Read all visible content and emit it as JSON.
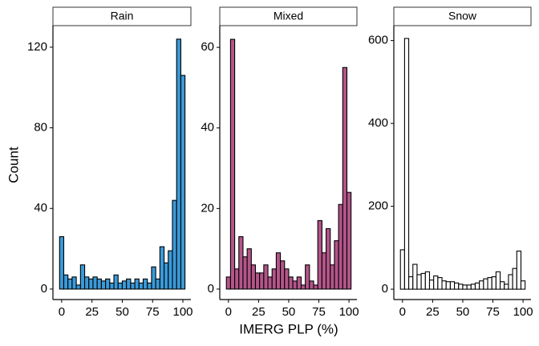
{
  "chart_data": [
    {
      "type": "histogram",
      "title": "Rain",
      "y_label": "Count",
      "bins": [
        -1.72,
        1.72,
        5.17,
        8.62,
        12.07,
        15.52,
        18.97,
        22.41,
        25.86,
        29.31,
        32.76,
        36.21,
        39.66,
        43.1,
        46.55,
        50,
        53.45,
        56.9,
        60.34,
        63.79,
        67.24,
        70.69,
        74.14,
        77.59,
        81.03,
        84.48,
        87.93,
        91.38,
        94.83,
        98.28,
        101.72
      ],
      "counts": [
        26,
        7,
        5,
        6,
        2,
        12,
        6,
        5,
        6,
        5,
        4,
        5,
        3,
        7,
        3,
        4,
        5,
        3,
        5,
        3,
        5,
        3,
        11,
        5,
        21,
        13,
        19,
        44,
        124,
        106
      ],
      "color": "#3a9ad9",
      "xlim": [
        -7.2,
        106.6
      ],
      "xticks": [
        0,
        25,
        50,
        75,
        100
      ],
      "ylim": [
        -5.2,
        130.7
      ],
      "yticks": [
        0,
        40,
        80,
        120
      ]
    },
    {
      "type": "histogram",
      "title": "Mixed",
      "x_label": "IMERG PLP (%)",
      "bins": [
        -1.72,
        1.72,
        5.17,
        8.62,
        12.07,
        15.52,
        18.97,
        22.41,
        25.86,
        29.31,
        32.76,
        36.21,
        39.66,
        43.1,
        46.55,
        50,
        53.45,
        56.9,
        60.34,
        63.79,
        67.24,
        70.69,
        74.14,
        77.59,
        81.03,
        84.48,
        87.93,
        91.38,
        94.83,
        98.28,
        101.72
      ],
      "counts": [
        3,
        62,
        5,
        13,
        8,
        10,
        6,
        4,
        4,
        6,
        3,
        5,
        9,
        7,
        5,
        3,
        2,
        3,
        1,
        6,
        2,
        1,
        17,
        9,
        15,
        6,
        12,
        21,
        55,
        24
      ],
      "color": "#b4558a",
      "xlim": [
        -7.2,
        106.6
      ],
      "xticks": [
        0,
        25,
        50,
        75,
        100
      ],
      "ylim": [
        -2.6,
        65.4
      ],
      "yticks": [
        0,
        20,
        40,
        60
      ]
    },
    {
      "type": "histogram",
      "title": "Snow",
      "bins": [
        -1.72,
        1.72,
        5.17,
        8.62,
        12.07,
        15.52,
        18.97,
        22.41,
        25.86,
        29.31,
        32.76,
        36.21,
        39.66,
        43.1,
        46.55,
        50,
        53.45,
        56.9,
        60.34,
        63.79,
        67.24,
        70.69,
        74.14,
        77.59,
        81.03,
        84.48,
        87.93,
        91.38,
        94.83,
        98.28,
        101.72
      ],
      "counts": [
        95,
        605,
        30,
        60,
        35,
        38,
        42,
        22,
        32,
        28,
        20,
        18,
        18,
        15,
        12,
        10,
        10,
        12,
        15,
        20,
        25,
        28,
        30,
        42,
        18,
        12,
        35,
        50,
        92,
        20
      ],
      "color": "#ffffff",
      "xlim": [
        -7.2,
        106.6
      ],
      "xticks": [
        0,
        25,
        50,
        75,
        100
      ],
      "ylim": [
        -25,
        636
      ],
      "yticks": [
        0,
        200,
        400,
        600
      ]
    }
  ]
}
